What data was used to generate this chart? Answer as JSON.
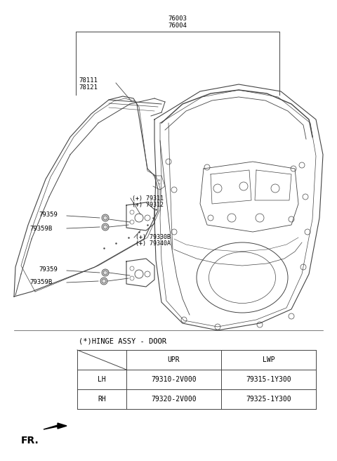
{
  "bg_color": "#ffffff",
  "gray": "#444444",
  "table_title": "(*)HINGE ASSY - DOOR",
  "table_headers": [
    "",
    "UPR",
    "LWP"
  ],
  "table_rows": [
    [
      "LH",
      "79310-2V000",
      "79315-1Y300"
    ],
    [
      "RH",
      "79320-2V000",
      "79325-1Y300"
    ]
  ],
  "fr_label": "FR.",
  "font_size_labels": 6.5,
  "font_size_table": 7,
  "lw_main": 0.8,
  "lw_thin": 0.5
}
